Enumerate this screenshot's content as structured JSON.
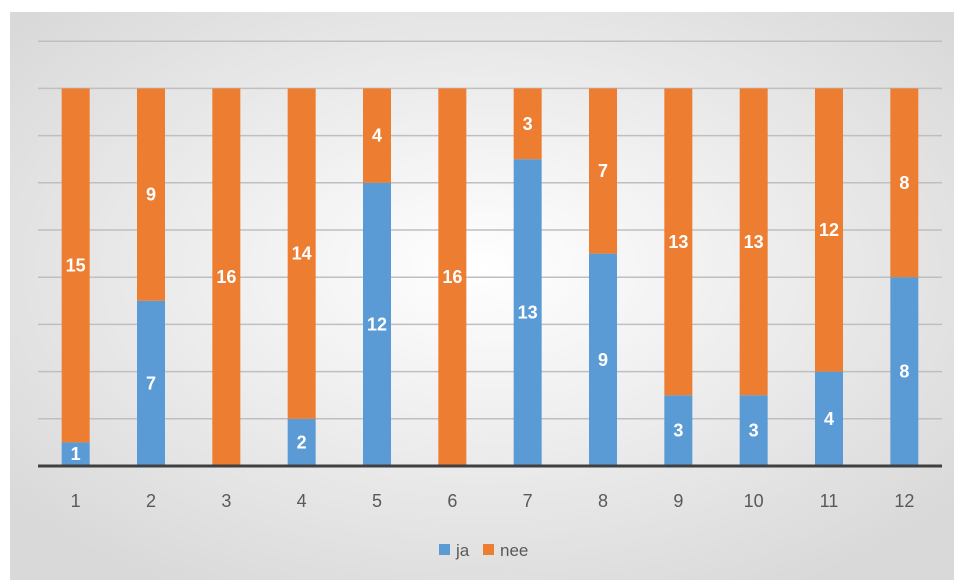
{
  "chart_data": {
    "type": "bar",
    "stacked": true,
    "categories": [
      "1",
      "2",
      "3",
      "4",
      "5",
      "6",
      "7",
      "8",
      "9",
      "10",
      "11",
      "12"
    ],
    "series": [
      {
        "name": "ja",
        "color": "#5B9BD5",
        "values": [
          1,
          7,
          0,
          2,
          12,
          0,
          13,
          9,
          3,
          3,
          4,
          8
        ],
        "labels": [
          "1",
          "7",
          "",
          "2",
          "12",
          "",
          "13",
          "9",
          "3",
          "3",
          "4",
          "8"
        ]
      },
      {
        "name": "nee",
        "color": "#ED7D31",
        "values": [
          15,
          9,
          16,
          14,
          4,
          16,
          3,
          7,
          13,
          13,
          12,
          8
        ],
        "labels": [
          "15",
          "9",
          "16",
          "14",
          "4",
          "16",
          "3",
          "7",
          "13",
          "13",
          "12",
          "8"
        ]
      }
    ],
    "ylim": [
      0,
      18
    ],
    "grid": true,
    "legend": "bottom"
  }
}
